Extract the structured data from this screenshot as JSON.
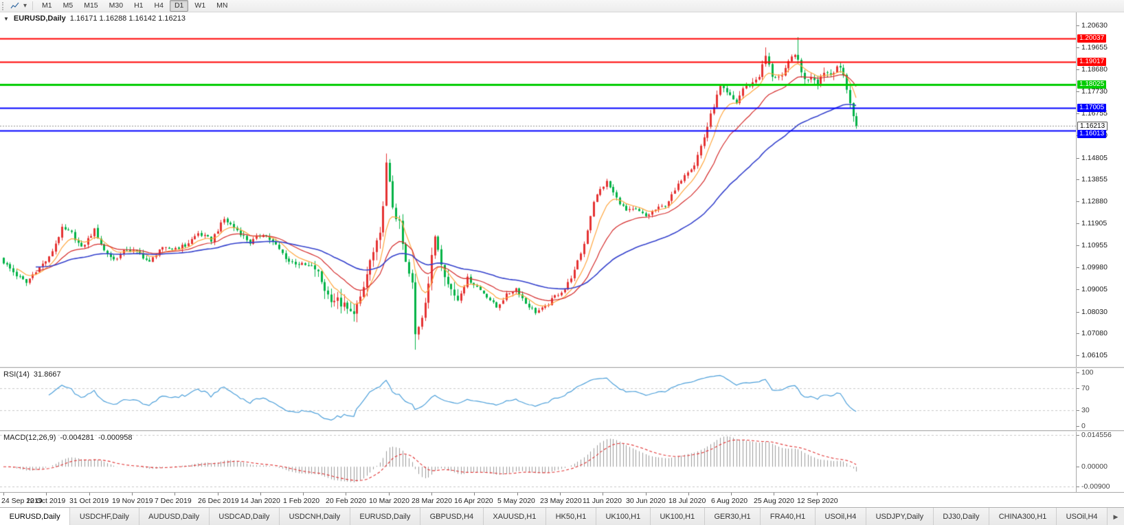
{
  "toolbar": {
    "timeframes": [
      "M1",
      "M5",
      "M15",
      "M30",
      "H1",
      "H4",
      "D1",
      "W1",
      "MN"
    ],
    "selected_timeframe": "D1"
  },
  "icons": {
    "one_click_trading": "▼",
    "chart_dropdown_caret": "▾",
    "tab_scroll_right": "▶"
  },
  "main_chart": {
    "title": "EURUSD,Daily",
    "ohlc": "1.16171 1.16288 1.16142 1.16213",
    "price_ticks": [
      "1.20630",
      "1.19655",
      "1.18680",
      "1.17730",
      "1.16755",
      "1.15780",
      "1.14805",
      "1.13855",
      "1.12880",
      "1.11905",
      "1.10955",
      "1.09980",
      "1.09005",
      "1.08030",
      "1.07080",
      "1.06105"
    ],
    "hlines": [
      {
        "value": 1.20037,
        "label": "1.20037",
        "color": "#FF0000",
        "width": 2
      },
      {
        "value": 1.19017,
        "label": "1.19017",
        "color": "#FF0000",
        "width": 2
      },
      {
        "value": 1.18025,
        "label": "1.18025",
        "color": "#00CC00",
        "width": 3
      },
      {
        "value": 1.17005,
        "label": "1.17005",
        "color": "#0000FF",
        "width": 2
      },
      {
        "value": 1.16013,
        "label": "1.16013",
        "color": "#0000FF",
        "width": 2
      }
    ],
    "current_price": {
      "label": "1.16213",
      "value": 1.16213
    },
    "colors": {
      "up": "#E53232",
      "down": "#00B246",
      "ma_fast": "#FFA53C",
      "ma_mid": "#D42A2A",
      "ma_slow": "#3340CC"
    }
  },
  "rsi": {
    "label": "RSI(14)",
    "value": "31.8667",
    "axis_labels": [
      "100",
      "70",
      "30",
      "0"
    ],
    "level_lines": [
      70,
      30
    ],
    "color": "#4A9ED9"
  },
  "macd": {
    "label": "MACD(12,26,9)",
    "value_main": "-0.004281",
    "value_signal": "-0.000958",
    "axis_labels": [
      "0.014556",
      "0.00000",
      "-0.00900"
    ],
    "level_lines": [
      0.014556,
      -0.009
    ],
    "hist_color": "#9A9A9A",
    "signal_color": "#E03030"
  },
  "date_axis": [
    "24 Sep 2019",
    "12 Oct 2019",
    "31 Oct 2019",
    "19 Nov 2019",
    "7 Dec 2019",
    "26 Dec 2019",
    "14 Jan 2020",
    "1 Feb 2020",
    "20 Feb 2020",
    "10 Mar 2020",
    "28 Mar 2020",
    "16 Apr 2020",
    "5 May 2020",
    "23 May 2020",
    "11 Jun 2020",
    "30 Jun 2020",
    "18 Jul 2020",
    "6 Aug 2020",
    "25 Aug 2020",
    "12 Sep 2020"
  ],
  "bottom_tabs": [
    "EURUSD,Daily",
    "USDCHF,Daily",
    "AUDUSD,Daily",
    "USDCAD,Daily",
    "USDCNH,Daily",
    "EURUSD,Daily",
    "GBPUSD,H4",
    "XAUUSD,H1",
    "HK50,H1",
    "UK100,H1",
    "UK100,H1",
    "GER30,H1",
    "FRA40,H1",
    "USOil,H4",
    "USDJPY,Daily",
    "DJ30,Daily",
    "CHINA300,H1",
    "USOil,H4"
  ],
  "active_tab_index": 0,
  "chart_data": {
    "type": "candlestick",
    "symbol": "EURUSD",
    "timeframe": "Daily",
    "n_candles": 264,
    "ylim_main": [
      1.056,
      1.212
    ],
    "ylim_rsi": [
      -8,
      108
    ],
    "ylim_macd": [
      -0.0115,
      0.016
    ],
    "ma_periods": {
      "fast": 8,
      "mid": 20,
      "slow": 55
    },
    "rsi_period": 14,
    "macd_params": [
      12,
      26,
      9
    ],
    "labels_every_n_candles": 13.2,
    "close_anchors": [
      [
        0,
        1.1021
      ],
      [
        4,
        1.0963
      ],
      [
        7,
        1.093
      ],
      [
        10,
        1.0985
      ],
      [
        14,
        1.104
      ],
      [
        18,
        1.1168
      ],
      [
        21,
        1.1148
      ],
      [
        24,
        1.1082
      ],
      [
        28,
        1.1162
      ],
      [
        31,
        1.1072
      ],
      [
        34,
        1.1032
      ],
      [
        38,
        1.1077
      ],
      [
        42,
        1.1058
      ],
      [
        45,
        1.1018
      ],
      [
        48,
        1.1078
      ],
      [
        52,
        1.1081
      ],
      [
        56,
        1.1093
      ],
      [
        60,
        1.1148
      ],
      [
        64,
        1.1118
      ],
      [
        68,
        1.121
      ],
      [
        72,
        1.1162
      ],
      [
        76,
        1.1107
      ],
      [
        80,
        1.1148
      ],
      [
        84,
        1.1094
      ],
      [
        88,
        1.1024
      ],
      [
        92,
        1.101
      ],
      [
        96,
        1.0996
      ],
      [
        100,
        1.0875
      ],
      [
        104,
        1.084
      ],
      [
        107,
        1.0794
      ],
      [
        110,
        1.085
      ],
      [
        113,
        1.1024
      ],
      [
        116,
        1.1132
      ],
      [
        118,
        1.1445
      ],
      [
        120,
        1.127
      ],
      [
        122,
        1.1182
      ],
      [
        124,
        1.1012
      ],
      [
        126,
        1.092
      ],
      [
        127,
        1.07
      ],
      [
        129,
        1.079
      ],
      [
        131,
        1.0932
      ],
      [
        133,
        1.1138
      ],
      [
        135,
        1.1032
      ],
      [
        137,
        1.0922
      ],
      [
        140,
        1.086
      ],
      [
        143,
        1.095
      ],
      [
        146,
        1.0912
      ],
      [
        149,
        1.0872
      ],
      [
        152,
        1.0822
      ],
      [
        155,
        1.0876
      ],
      [
        158,
        1.0906
      ],
      [
        161,
        1.084
      ],
      [
        164,
        1.0802
      ],
      [
        167,
        1.0822
      ],
      [
        170,
        1.0872
      ],
      [
        173,
        1.0902
      ],
      [
        176,
        1.0982
      ],
      [
        179,
        1.1102
      ],
      [
        182,
        1.129
      ],
      [
        184,
        1.134
      ],
      [
        186,
        1.1374
      ],
      [
        189,
        1.1302
      ],
      [
        192,
        1.1246
      ],
      [
        195,
        1.1252
      ],
      [
        198,
        1.1222
      ],
      [
        201,
        1.1252
      ],
      [
        204,
        1.1272
      ],
      [
        207,
        1.1334
      ],
      [
        210,
        1.1412
      ],
      [
        213,
        1.1452
      ],
      [
        216,
        1.1572
      ],
      [
        219,
        1.1712
      ],
      [
        221,
        1.179
      ],
      [
        223,
        1.1762
      ],
      [
        226,
        1.1722
      ],
      [
        228,
        1.1786
      ],
      [
        231,
        1.181
      ],
      [
        233,
        1.1842
      ],
      [
        235,
        1.1928
      ],
      [
        237,
        1.1842
      ],
      [
        240,
        1.1832
      ],
      [
        243,
        1.1935
      ],
      [
        245,
        1.191
      ],
      [
        247,
        1.182
      ],
      [
        249,
        1.1842
      ],
      [
        251,
        1.1816
      ],
      [
        253,
        1.1862
      ],
      [
        255,
        1.1848
      ],
      [
        257,
        1.1886
      ],
      [
        259,
        1.1842
      ],
      [
        260,
        1.1788
      ],
      [
        261,
        1.1722
      ],
      [
        262,
        1.1658
      ],
      [
        263,
        1.16213
      ]
    ],
    "high_overrides": [
      [
        118,
        1.1499
      ],
      [
        235,
        1.1966
      ],
      [
        245,
        1.2011
      ]
    ],
    "low_overrides": [
      [
        127,
        1.0636
      ]
    ],
    "volatility_segments": [
      [
        0,
        0.0018
      ],
      [
        96,
        0.0045
      ],
      [
        141,
        0.0016
      ],
      [
        210,
        0.0022
      ],
      [
        246,
        0.0028
      ]
    ]
  }
}
